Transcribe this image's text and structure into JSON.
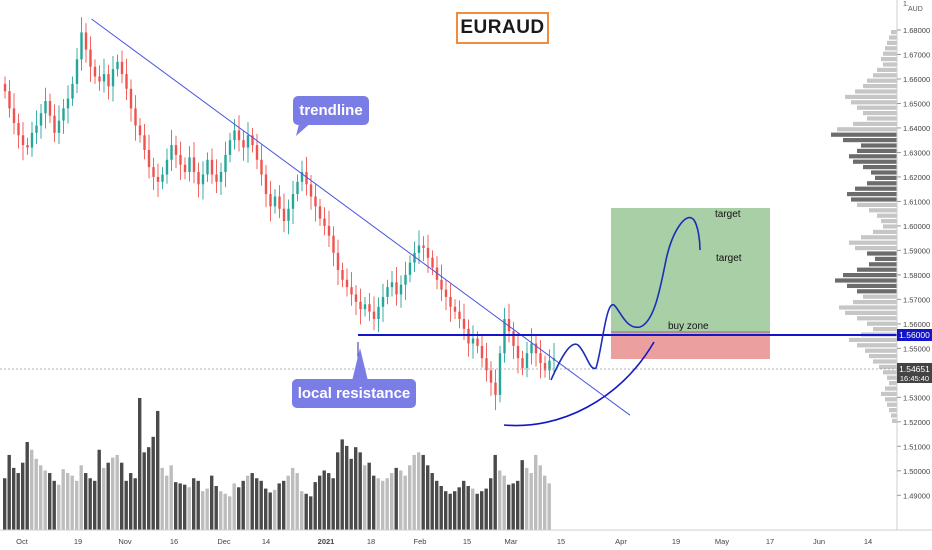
{
  "title": "EURAUD",
  "annotations": {
    "trendline": "trendline",
    "local_resistance": "local resistance",
    "buy_zone": "buy zone",
    "target1": "target",
    "target2": "target"
  },
  "price_axis": {
    "currency": "AUD",
    "top_label": "1.",
    "ticks": [
      "1.68000",
      "1.67000",
      "1.66000",
      "1.65000",
      "1.64000",
      "1.63000",
      "1.62000",
      "1.61000",
      "1.60000",
      "1.59000",
      "1.58000",
      "1.57000",
      "1.56000",
      "1.55000",
      "1.54000",
      "1.53000",
      "1.52000",
      "1.51000",
      "1.50000",
      "1.49000"
    ],
    "resistance_tag": "1.56000",
    "last_price_tag": "1.54651",
    "countdown": "16:45:40"
  },
  "time_axis": {
    "labels": [
      "Oct",
      "19",
      "Nov",
      "16",
      "Dec",
      "14",
      "2021",
      "18",
      "Feb",
      "15",
      "Mar",
      "15",
      "Apr",
      "19",
      "May",
      "17",
      "Jun",
      "14"
    ]
  },
  "colors": {
    "up": "#26a69a",
    "down": "#ef5350",
    "trendline": "#4a55e0",
    "resistance": "#1414c8",
    "target_zone": "#a8cfa6",
    "stop_zone": "#ec9f9f",
    "callout": "#7b7de6",
    "title_border": "#f08c3c"
  },
  "chart_data": {
    "type": "candlestick",
    "symbol": "EURAUD",
    "ylim": [
      1.485,
      1.69
    ],
    "resistance_level": 1.56,
    "last_price": 1.54651,
    "target_zone": [
      1.561,
      1.61
    ],
    "stop_zone": [
      1.55,
      1.561
    ],
    "trendline": [
      [
        19,
        1.6845
      ],
      [
        122,
        1.5455
      ]
    ],
    "close_series": [
      1.655,
      1.648,
      1.642,
      1.637,
      1.633,
      1.632,
      1.638,
      1.641,
      1.646,
      1.651,
      1.645,
      1.638,
      1.643,
      1.648,
      1.652,
      1.658,
      1.668,
      1.679,
      1.672,
      1.665,
      1.661,
      1.659,
      1.662,
      1.657,
      1.664,
      1.667,
      1.662,
      1.656,
      1.648,
      1.641,
      1.637,
      1.631,
      1.624,
      1.62,
      1.618,
      1.621,
      1.627,
      1.633,
      1.629,
      1.625,
      1.622,
      1.628,
      1.622,
      1.617,
      1.621,
      1.627,
      1.621,
      1.618,
      1.622,
      1.629,
      1.635,
      1.639,
      1.635,
      1.632,
      1.637,
      1.633,
      1.627,
      1.621,
      1.613,
      1.608,
      1.612,
      1.607,
      1.602,
      1.607,
      1.613,
      1.618,
      1.622,
      1.617,
      1.612,
      1.608,
      1.603,
      1.6,
      1.596,
      1.589,
      1.582,
      1.578,
      1.575,
      1.572,
      1.569,
      1.566,
      1.568,
      1.565,
      1.562,
      1.567,
      1.571,
      1.575,
      1.577,
      1.572,
      1.576,
      1.58,
      1.585,
      1.589,
      1.592,
      1.591,
      1.587,
      1.583,
      1.578,
      1.574,
      1.571,
      1.567,
      1.565,
      1.562,
      1.558,
      1.552,
      1.554,
      1.551,
      1.546,
      1.541,
      1.536,
      1.531,
      1.548,
      1.562,
      1.557,
      1.551,
      1.546,
      1.542,
      1.548,
      1.552,
      1.548,
      1.544,
      1.541,
      1.545,
      1.546
    ],
    "volume_series": [
      40,
      58,
      48,
      44,
      52,
      68,
      62,
      55,
      50,
      46,
      44,
      38,
      35,
      47,
      44,
      42,
      38,
      50,
      44,
      40,
      38,
      62,
      48,
      52,
      56,
      58,
      52,
      38,
      44,
      40,
      102,
      60,
      64,
      72,
      92,
      48,
      42,
      50,
      37,
      36,
      35,
      33,
      40,
      38,
      30,
      32,
      42,
      34,
      30,
      28,
      26,
      36,
      33,
      38,
      42,
      44,
      40,
      38,
      32,
      29,
      31,
      36,
      38,
      42,
      48,
      44,
      30,
      28,
      26,
      37,
      42,
      46,
      44,
      40,
      60,
      70,
      65,
      55,
      64,
      60,
      50,
      52,
      42,
      40,
      38,
      40,
      44,
      48,
      46,
      42,
      50,
      58,
      60,
      58,
      50,
      44,
      38,
      34,
      30,
      28,
      30,
      33,
      38,
      34,
      32,
      28,
      30,
      32,
      40,
      58,
      46,
      42,
      35,
      36,
      38,
      54,
      48,
      44,
      58,
      50,
      42,
      36
    ]
  }
}
